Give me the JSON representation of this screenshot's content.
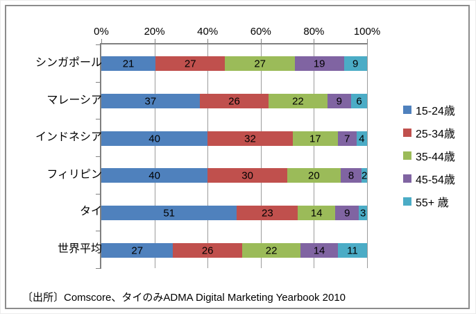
{
  "chart_data": {
    "type": "bar",
    "orientation": "horizontal",
    "stacked": "100%",
    "grid": true,
    "legend_position": "right",
    "categories": [
      "シンガポール",
      "マレーシア",
      "インドネシア",
      "フィリピン",
      "タイ",
      "世界平均"
    ],
    "series": [
      {
        "name": "15-24歳",
        "color": "#4F81BD",
        "values": [
          21,
          37,
          40,
          40,
          51,
          27
        ]
      },
      {
        "name": "25-34歳",
        "color": "#C0504D",
        "values": [
          27,
          26,
          32,
          30,
          23,
          26
        ]
      },
      {
        "name": "35-44歳",
        "color": "#9BBB59",
        "values": [
          27,
          22,
          17,
          20,
          14,
          22
        ]
      },
      {
        "name": "45-54歳",
        "color": "#8064A2",
        "values": [
          19,
          9,
          7,
          8,
          9,
          14
        ]
      },
      {
        "name": "55+ 歳",
        "color": "#4BACC6",
        "values": [
          9,
          6,
          4,
          2,
          3,
          11
        ]
      }
    ],
    "x_axis": {
      "position": "top",
      "min": 0,
      "max": 100,
      "tick_values": [
        0,
        20,
        40,
        60,
        80,
        100
      ],
      "tick_labels": [
        "0%",
        "20%",
        "40%",
        "60%",
        "80%",
        "100%"
      ]
    },
    "colors": {
      "axis_line": "#808080",
      "gridline": "#9b9b9b",
      "frame_border": "#8c8c8c",
      "label_text": "#000000"
    }
  },
  "source_note": "〔出所〕Comscore、タイのみADMA Digital Marketing Yearbook 2010"
}
